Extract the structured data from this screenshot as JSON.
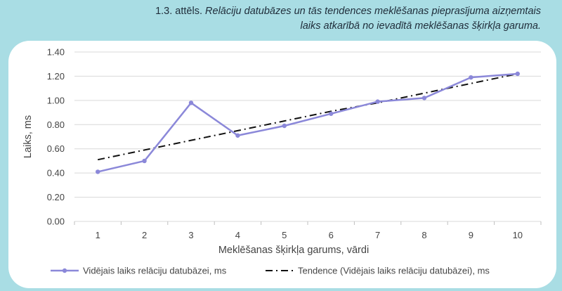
{
  "caption": {
    "number": "1.3. attēls.",
    "line1": "Relāciju datubāzes un tās tendences meklēšanas pieprasījuma aizņemtais",
    "line2": "laiks atkarībā no ievadītā meklēšanas šķirkļa garuma."
  },
  "colors": {
    "background": "#a9dde4",
    "series": "#8b88d9",
    "trend": "#111111",
    "grid": "#d9d9d9"
  },
  "chart_data": {
    "type": "line",
    "x": [
      1,
      2,
      3,
      4,
      5,
      6,
      7,
      8,
      9,
      10
    ],
    "xlabel": "Meklēšanas šķirkļa garums, vārdi",
    "ylabel": "Laiks, ms",
    "ylim": [
      0,
      1.4
    ],
    "yticks": [
      "0.00",
      "0.20",
      "0.40",
      "0.60",
      "0.80",
      "1.00",
      "1.20",
      "1.40"
    ],
    "grid": true,
    "legend_position": "bottom",
    "series": [
      {
        "name": "Vidējais laiks relāciju datubāzei, ms",
        "values": [
          0.41,
          0.5,
          0.98,
          0.71,
          0.79,
          0.89,
          0.99,
          1.02,
          1.19,
          1.22
        ],
        "style": "solid-line-with-markers"
      },
      {
        "name": "Tendence (Vidējais laiks relāciju datubāzei), ms",
        "values": [
          0.51,
          0.59,
          0.67,
          0.75,
          0.83,
          0.91,
          0.98,
          1.06,
          1.14,
          1.22
        ],
        "style": "dash-dot-line"
      }
    ]
  }
}
